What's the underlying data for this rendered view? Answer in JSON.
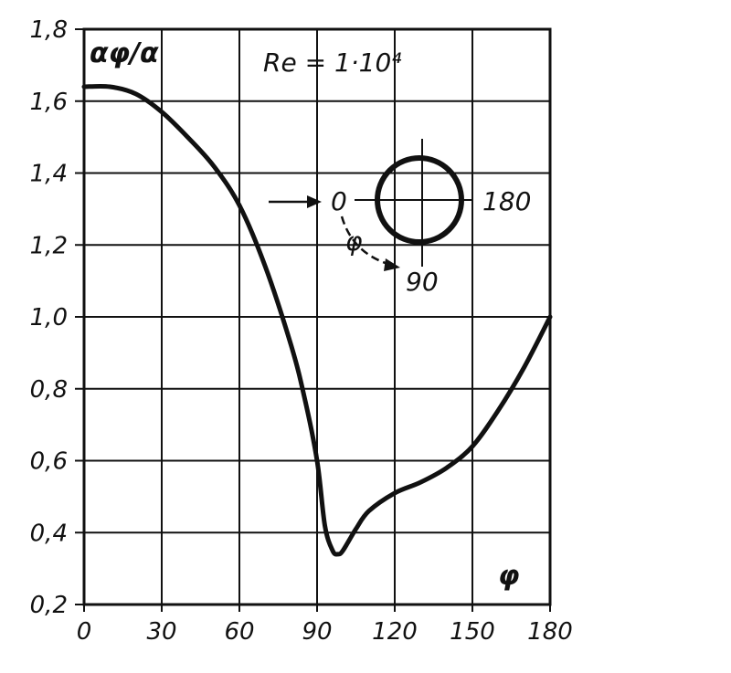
{
  "chart_data": {
    "type": "line",
    "title": "",
    "ylabel": "αφ/α",
    "xlabel": "φ",
    "annotation": "Re = 1·10⁴",
    "xlim": [
      0,
      180
    ],
    "ylim": [
      0.2,
      1.8
    ],
    "x_ticks": [
      0,
      30,
      60,
      90,
      120,
      150,
      180
    ],
    "x_tick_labels": [
      "0",
      "30",
      "60",
      "90",
      "120",
      "150",
      "180"
    ],
    "y_ticks": [
      0.2,
      0.4,
      0.6,
      0.8,
      1.0,
      1.2,
      1.4,
      1.6,
      1.8
    ],
    "y_tick_labels": [
      "0,2",
      "0,4",
      "0,6",
      "0,8",
      "1,0",
      "1,2",
      "1,4",
      "1,6",
      "1,8"
    ],
    "grid": true,
    "series": [
      {
        "x": [
          0,
          10,
          20,
          30,
          40,
          50,
          60,
          70,
          80,
          85,
          90,
          93,
          96,
          98,
          100,
          105,
          110,
          120,
          130,
          140,
          150,
          160,
          170,
          180
        ],
        "y": [
          1.64,
          1.64,
          1.62,
          1.57,
          1.5,
          1.42,
          1.31,
          1.14,
          0.92,
          0.78,
          0.6,
          0.42,
          0.35,
          0.34,
          0.35,
          0.41,
          0.46,
          0.51,
          0.54,
          0.58,
          0.64,
          0.74,
          0.86,
          1.0
        ]
      }
    ]
  },
  "inset": {
    "flow_label": "0",
    "angle_label": "φ",
    "label_90": "90",
    "label_180": "180"
  }
}
